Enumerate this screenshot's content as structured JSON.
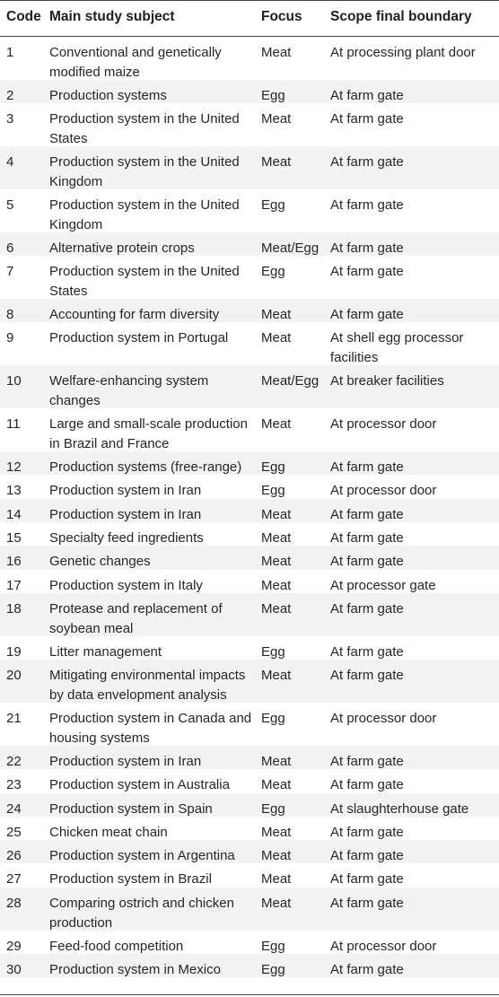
{
  "table": {
    "headers": {
      "code": "Code",
      "subject": "Main study subject",
      "focus": "Focus",
      "scope": "Scope final boundary"
    },
    "rows": [
      {
        "code": "1",
        "subject": "Conventional and genetically modified maize",
        "focus": "Meat",
        "scope": "At processing plant door"
      },
      {
        "code": "2",
        "subject": "Production systems",
        "focus": "Egg",
        "scope": "At farm gate"
      },
      {
        "code": "3",
        "subject": "Production system in the United States",
        "focus": "Meat",
        "scope": "At farm gate"
      },
      {
        "code": "4",
        "subject": "Production system in the United Kingdom",
        "focus": "Meat",
        "scope": "At farm gate"
      },
      {
        "code": "5",
        "subject": "Production system in the United Kingdom",
        "focus": "Egg",
        "scope": "At farm gate"
      },
      {
        "code": "6",
        "subject": "Alternative protein crops",
        "focus": "Meat/Egg",
        "scope": "At farm gate"
      },
      {
        "code": "7",
        "subject": "Production system in the United States",
        "focus": "Egg",
        "scope": "At farm gate"
      },
      {
        "code": "8",
        "subject": "Accounting for farm diversity",
        "focus": "Meat",
        "scope": "At farm gate"
      },
      {
        "code": "9",
        "subject": "Production system in Portugal",
        "focus": "Meat",
        "scope": "At shell egg processor facilities"
      },
      {
        "code": "10",
        "subject": "Welfare-enhancing system changes",
        "focus": "Meat/Egg",
        "scope": "At breaker facilities"
      },
      {
        "code": "11",
        "subject": "Large and small-scale production in Brazil and France",
        "focus": "Meat",
        "scope": "At processor door"
      },
      {
        "code": "12",
        "subject": "Production systems (free-range)",
        "focus": "Egg",
        "scope": "At farm gate"
      },
      {
        "code": "13",
        "subject": "Production system in Iran",
        "focus": "Egg",
        "scope": "At processor door"
      },
      {
        "code": "14",
        "subject": "Production system in Iran",
        "focus": "Meat",
        "scope": "At farm gate"
      },
      {
        "code": "15",
        "subject": "Specialty feed ingredients",
        "focus": "Meat",
        "scope": "At farm gate"
      },
      {
        "code": "16",
        "subject": "Genetic changes",
        "focus": "Meat",
        "scope": "At farm gate"
      },
      {
        "code": "17",
        "subject": "Production system in Italy",
        "focus": "Meat",
        "scope": "At processor gate"
      },
      {
        "code": "18",
        "subject": "Protease and replacement of soybean meal",
        "focus": "Meat",
        "scope": "At farm gate"
      },
      {
        "code": "19",
        "subject": "Litter management",
        "focus": "Egg",
        "scope": "At farm gate"
      },
      {
        "code": "20",
        "subject": "Mitigating environmental impacts by data envelopment analysis",
        "focus": "Meat",
        "scope": "At farm gate"
      },
      {
        "code": "21",
        "subject": "Production system in Canada and housing systems",
        "focus": "Egg",
        "scope": "At processor door"
      },
      {
        "code": "22",
        "subject": "Production system in Iran",
        "focus": "Meat",
        "scope": "At farm gate"
      },
      {
        "code": "23",
        "subject": "Production system in Australia",
        "focus": "Meat",
        "scope": "At farm gate"
      },
      {
        "code": "24",
        "subject": "Production system in Spain",
        "focus": "Egg",
        "scope": "At slaughterhouse gate"
      },
      {
        "code": "25",
        "subject": "Chicken meat chain",
        "focus": "Meat",
        "scope": "At farm gate"
      },
      {
        "code": "26",
        "subject": "Production system in Argentina",
        "focus": "Meat",
        "scope": "At farm gate"
      },
      {
        "code": "27",
        "subject": "Production system in Brazil",
        "focus": "Meat",
        "scope": "At farm gate"
      },
      {
        "code": "28",
        "subject": "Comparing ostrich and chicken production",
        "focus": "Meat",
        "scope": "At farm gate"
      },
      {
        "code": "29",
        "subject": "Feed-food competition",
        "focus": "Egg",
        "scope": "At processor door"
      },
      {
        "code": "30",
        "subject": "Production system in Mexico",
        "focus": "Egg",
        "scope": "At farm gate"
      }
    ]
  }
}
